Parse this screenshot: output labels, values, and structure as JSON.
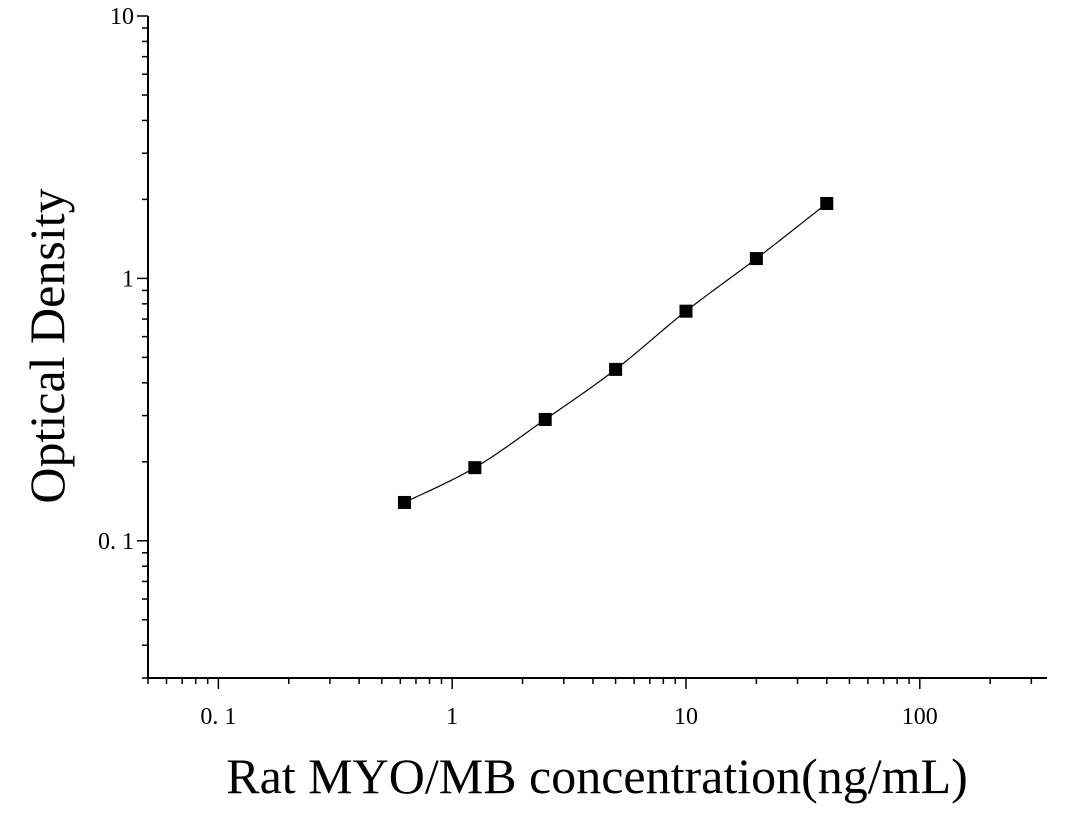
{
  "chart_data": {
    "type": "scatter",
    "xlabel": "Rat MYO/MB concentration(ng/mL)",
    "ylabel": "Optical Density",
    "x_scale": "log",
    "y_scale": "log",
    "xlim": [
      0.05,
      350
    ],
    "ylim": [
      0.03,
      10
    ],
    "x_tick_labels": [
      "0. 1",
      "1",
      "10",
      "100"
    ],
    "x_tick_values": [
      0.1,
      1,
      10,
      100
    ],
    "y_tick_labels": [
      "0. 1",
      "1",
      "10"
    ],
    "y_tick_values": [
      0.1,
      1,
      10
    ],
    "grid": false,
    "legend": "none",
    "series": [
      {
        "x": [
          0.625,
          1.25,
          2.5,
          5,
          10,
          20,
          40
        ],
        "y": [
          0.14,
          0.19,
          0.29,
          0.45,
          0.75,
          1.19,
          1.93
        ],
        "marker": "square",
        "fit_line": true,
        "color": "#000000"
      }
    ]
  }
}
